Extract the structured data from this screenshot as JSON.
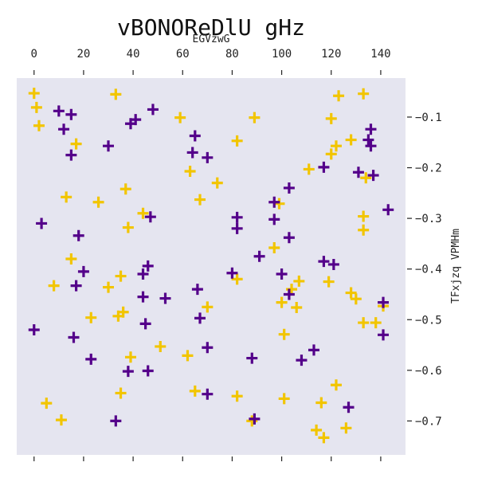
{
  "chart_data": {
    "type": "scatter",
    "title": "vBONOReDlU gHz",
    "xlabel": "EGVzwG",
    "ylabel": "TFxjzq VPMHm",
    "x_ticks": [
      0,
      20,
      40,
      60,
      80,
      100,
      120,
      140
    ],
    "y_ticks": [
      -0.1,
      -0.2,
      -0.3,
      -0.4,
      -0.5,
      -0.6,
      -0.7
    ],
    "xlim": [
      -7,
      150
    ],
    "ylim": [
      -0.767,
      -0.023
    ],
    "x_axis_position": "top",
    "y_axis_position": "right",
    "marker": "plus",
    "background": "#e5e5f0",
    "grid": false,
    "series": [
      {
        "color": "#f2c500",
        "points": [
          [
            0,
            -0.053
          ],
          [
            1,
            -0.081
          ],
          [
            2,
            -0.117
          ],
          [
            5,
            -0.665
          ],
          [
            8,
            -0.433
          ],
          [
            11,
            -0.698
          ],
          [
            13,
            -0.258
          ],
          [
            15,
            -0.38
          ],
          [
            17,
            -0.153
          ],
          [
            23,
            -0.496
          ],
          [
            26,
            -0.268
          ],
          [
            30,
            -0.436
          ],
          [
            33,
            -0.055
          ],
          [
            34,
            -0.493
          ],
          [
            35,
            -0.414
          ],
          [
            35,
            -0.645
          ],
          [
            36,
            -0.485
          ],
          [
            37,
            -0.242
          ],
          [
            38,
            -0.318
          ],
          [
            39,
            -0.574
          ],
          [
            44,
            -0.29
          ],
          [
            51,
            -0.553
          ],
          [
            59,
            -0.101
          ],
          [
            62,
            -0.571
          ],
          [
            63,
            -0.207
          ],
          [
            65,
            -0.641
          ],
          [
            67,
            -0.263
          ],
          [
            70,
            -0.475
          ],
          [
            74,
            -0.23
          ],
          [
            82,
            -0.147
          ],
          [
            82,
            -0.42
          ],
          [
            82,
            -0.651
          ],
          [
            88,
            -0.7
          ],
          [
            89,
            -0.101
          ],
          [
            97,
            -0.358
          ],
          [
            99,
            -0.271
          ],
          [
            100,
            -0.466
          ],
          [
            101,
            -0.529
          ],
          [
            101,
            -0.656
          ],
          [
            104,
            -0.44
          ],
          [
            106,
            -0.476
          ],
          [
            107,
            -0.424
          ],
          [
            111,
            -0.203
          ],
          [
            114,
            -0.718
          ],
          [
            116,
            -0.664
          ],
          [
            117,
            -0.733
          ],
          [
            119,
            -0.425
          ],
          [
            120,
            -0.103
          ],
          [
            120,
            -0.173
          ],
          [
            122,
            -0.157
          ],
          [
            122,
            -0.629
          ],
          [
            123,
            -0.058
          ],
          [
            126,
            -0.714
          ],
          [
            128,
            -0.145
          ],
          [
            128,
            -0.447
          ],
          [
            130,
            -0.459
          ],
          [
            133,
            -0.054
          ],
          [
            133,
            -0.296
          ],
          [
            133,
            -0.323
          ],
          [
            133,
            -0.506
          ],
          [
            134,
            -0.22
          ],
          [
            138,
            -0.506
          ],
          [
            141,
            -0.473
          ]
        ]
      },
      {
        "color": "#54008a",
        "points": [
          [
            0,
            -0.52
          ],
          [
            3,
            -0.31
          ],
          [
            10,
            -0.088
          ],
          [
            12,
            -0.124
          ],
          [
            15,
            -0.095
          ],
          [
            15,
            -0.175
          ],
          [
            16,
            -0.535
          ],
          [
            17,
            -0.433
          ],
          [
            18,
            -0.334
          ],
          [
            20,
            -0.405
          ],
          [
            23,
            -0.578
          ],
          [
            30,
            -0.157
          ],
          [
            33,
            -0.7
          ],
          [
            38,
            -0.602
          ],
          [
            39,
            -0.113
          ],
          [
            41,
            -0.105
          ],
          [
            44,
            -0.41
          ],
          [
            44,
            -0.455
          ],
          [
            45,
            -0.508
          ],
          [
            46,
            -0.394
          ],
          [
            46,
            -0.601
          ],
          [
            47,
            -0.297
          ],
          [
            48,
            -0.085
          ],
          [
            53,
            -0.458
          ],
          [
            64,
            -0.17
          ],
          [
            65,
            -0.137
          ],
          [
            66,
            -0.44
          ],
          [
            67,
            -0.497
          ],
          [
            70,
            -0.18
          ],
          [
            70,
            -0.555
          ],
          [
            70,
            -0.647
          ],
          [
            80,
            -0.408
          ],
          [
            82,
            -0.298
          ],
          [
            82,
            -0.32
          ],
          [
            88,
            -0.576
          ],
          [
            89,
            -0.696
          ],
          [
            91,
            -0.375
          ],
          [
            97,
            -0.268
          ],
          [
            97,
            -0.302
          ],
          [
            100,
            -0.41
          ],
          [
            103,
            -0.24
          ],
          [
            103,
            -0.338
          ],
          [
            103,
            -0.45
          ],
          [
            108,
            -0.58
          ],
          [
            113,
            -0.56
          ],
          [
            117,
            -0.199
          ],
          [
            117,
            -0.385
          ],
          [
            121,
            -0.391
          ],
          [
            127,
            -0.673
          ],
          [
            131,
            -0.209
          ],
          [
            135,
            -0.145
          ],
          [
            136,
            -0.124
          ],
          [
            136,
            -0.157
          ],
          [
            137,
            -0.215
          ],
          [
            141,
            -0.466
          ],
          [
            141,
            -0.53
          ],
          [
            143,
            -0.283
          ]
        ]
      }
    ]
  }
}
